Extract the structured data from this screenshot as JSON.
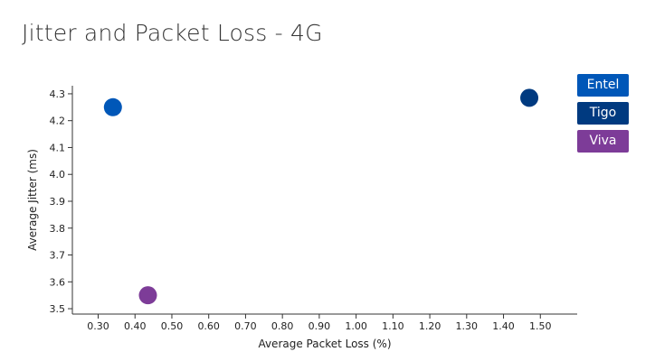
{
  "chart_data": {
    "type": "scatter",
    "title": "Jitter and Packet Loss - 4G",
    "xlabel": "Average Packet Loss (%)",
    "ylabel": "Average Jitter (ms)",
    "xlim": [
      0.23,
      1.6
    ],
    "ylim": [
      3.48,
      4.33
    ],
    "xticks": [
      "0.30",
      "0.40",
      "0.50",
      "0.60",
      "0.70",
      "0.80",
      "0.90",
      "1.00",
      "1.10",
      "1.20",
      "1.30",
      "1.40",
      "1.50"
    ],
    "yticks": [
      "3.5",
      "3.6",
      "3.7",
      "3.8",
      "3.9",
      "4.0",
      "4.1",
      "4.2",
      "4.3"
    ],
    "legend_position": "right",
    "grid": false,
    "series": [
      {
        "name": "Entel",
        "color": "#0057b8",
        "x": 0.34,
        "y": 4.25
      },
      {
        "name": "Tigo",
        "color": "#003a80",
        "x": 1.47,
        "y": 4.285
      },
      {
        "name": "Viva",
        "color": "#7d3c98",
        "x": 0.435,
        "y": 3.55
      }
    ]
  }
}
